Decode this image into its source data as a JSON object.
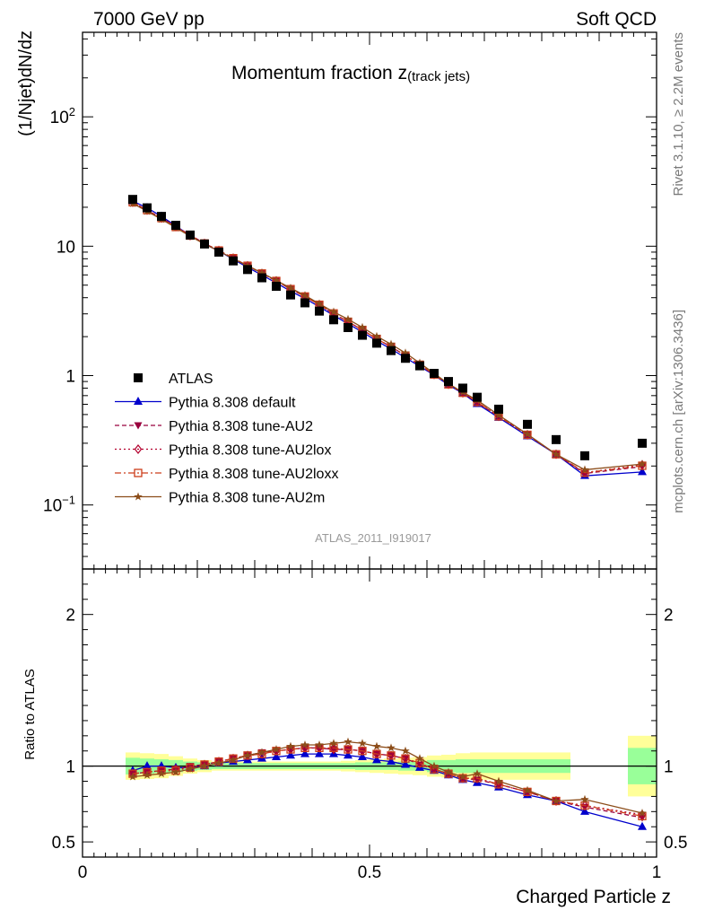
{
  "header": {
    "left": "7000 GeV pp",
    "right": "Soft QCD"
  },
  "side_labels": {
    "rivet": "Rivet 3.1.10, ≥ 2.2M events",
    "mcplots": "mcplots.cern.ch [arXiv:1306.3436]"
  },
  "main": {
    "title_main": "Momentum fraction ",
    "title_sym": "z",
    "title_sub": "(track jets)",
    "ylabel": "(1/Njet)dN/dz",
    "analysis_tag": "ATLAS_2011_I919017",
    "yticks": [
      {
        "label": "10",
        "exp": "−1",
        "pos": 0.1
      },
      {
        "label": "1",
        "exp": "",
        "pos": 1
      },
      {
        "label": "10",
        "exp": "",
        "pos": 10
      },
      {
        "label": "10",
        "exp": "2",
        "pos": 100
      }
    ]
  },
  "ratio": {
    "ylabel": "Ratio to ATLAS",
    "yticks": [
      {
        "label": "0.5",
        "pos": 0.5
      },
      {
        "label": "1",
        "pos": 1
      },
      {
        "label": "2",
        "pos": 2
      }
    ]
  },
  "xaxis": {
    "label": "Charged Particle z",
    "ticks": [
      {
        "label": "0",
        "pos": 0
      },
      {
        "label": "0.5",
        "pos": 0.5
      },
      {
        "label": "1",
        "pos": 1
      }
    ]
  },
  "legend": [
    {
      "name": "ATLAS",
      "color": "#000000",
      "marker": "square",
      "dash": ""
    },
    {
      "name": "Pythia 8.308 default",
      "color": "#0000cc",
      "marker": "triangle",
      "dash": ""
    },
    {
      "name": "Pythia 8.308 tune-AU2",
      "color": "#99003d",
      "marker": "tridown",
      "dash": "5,3"
    },
    {
      "name": "Pythia 8.308 tune-AU2lox",
      "color": "#b3002d",
      "marker": "diamond",
      "dash": "2,3"
    },
    {
      "name": "Pythia 8.308 tune-AU2loxx",
      "color": "#cc3d1a",
      "marker": "opensquare",
      "dash": "7,3,2,3"
    },
    {
      "name": "Pythia 8.308 tune-AU2m",
      "color": "#8c4d1a",
      "marker": "star",
      "dash": ""
    }
  ],
  "chart_data": {
    "type": "line",
    "x_range": [
      0,
      1
    ],
    "main_yscale": "log",
    "main_ylim": [
      0.032,
      450
    ],
    "ratio_ylim": [
      0.4,
      2.3
    ],
    "x": [
      0.0875,
      0.1125,
      0.1375,
      0.1625,
      0.1875,
      0.2125,
      0.2375,
      0.2625,
      0.2875,
      0.3125,
      0.3375,
      0.3625,
      0.3875,
      0.4125,
      0.4375,
      0.4625,
      0.4875,
      0.5125,
      0.5375,
      0.5625,
      0.5875,
      0.6125,
      0.6375,
      0.6625,
      0.6875,
      0.725,
      0.775,
      0.825,
      0.875,
      0.975
    ],
    "x_err": [
      0.0125,
      0.0125,
      0.0125,
      0.0125,
      0.0125,
      0.0125,
      0.0125,
      0.0125,
      0.0125,
      0.0125,
      0.0125,
      0.0125,
      0.0125,
      0.0125,
      0.0125,
      0.0125,
      0.0125,
      0.0125,
      0.0125,
      0.0125,
      0.0125,
      0.0125,
      0.0125,
      0.0125,
      0.0125,
      0.025,
      0.025,
      0.025,
      0.025,
      0.025
    ],
    "data": [
      23.0,
      19.8,
      17.0,
      14.5,
      12.2,
      10.4,
      9.0,
      7.7,
      6.6,
      5.7,
      4.9,
      4.2,
      3.65,
      3.15,
      2.7,
      2.35,
      2.05,
      1.78,
      1.56,
      1.36,
      1.19,
      1.04,
      0.9,
      0.8,
      0.68,
      0.55,
      0.42,
      0.32,
      0.24,
      0.3
    ],
    "band_inner": [
      0.055,
      0.05,
      0.045,
      0.04,
      0.03,
      0.025,
      0.02,
      0.02,
      0.02,
      0.02,
      0.02,
      0.02,
      0.02,
      0.02,
      0.02,
      0.02,
      0.025,
      0.025,
      0.025,
      0.03,
      0.03,
      0.04,
      0.04,
      0.045,
      0.045,
      0.045,
      0.045,
      0.045,
      0.045,
      0.12
    ],
    "band_outer": [
      0.09,
      0.085,
      0.08,
      0.065,
      0.05,
      0.04,
      0.03,
      0.03,
      0.03,
      0.03,
      0.03,
      0.03,
      0.03,
      0.03,
      0.03,
      0.035,
      0.04,
      0.045,
      0.05,
      0.055,
      0.06,
      0.07,
      0.075,
      0.085,
      0.09,
      0.09,
      0.09,
      0.09,
      0.09,
      0.2
    ],
    "band_gaps": [
      28
    ],
    "series": [
      {
        "name": "Pythia 8.308 default",
        "ratio": [
          0.97,
          1.0,
          1.0,
          0.99,
          0.99,
          1.0,
          1.02,
          1.03,
          1.04,
          1.05,
          1.06,
          1.07,
          1.08,
          1.08,
          1.08,
          1.07,
          1.06,
          1.04,
          1.03,
          1.01,
          0.99,
          0.97,
          0.94,
          0.91,
          0.89,
          0.86,
          0.81,
          0.77,
          0.7,
          0.6
        ]
      },
      {
        "name": "Pythia 8.308 tune-AU2",
        "ratio": [
          0.95,
          0.96,
          0.97,
          0.98,
          1.0,
          1.01,
          1.03,
          1.05,
          1.07,
          1.09,
          1.1,
          1.11,
          1.12,
          1.12,
          1.11,
          1.11,
          1.1,
          1.08,
          1.07,
          1.05,
          1.01,
          0.98,
          0.95,
          0.92,
          0.91,
          0.88,
          0.83,
          0.77,
          0.73,
          0.66
        ]
      },
      {
        "name": "Pythia 8.308 tune-AU2lox",
        "ratio": [
          0.95,
          0.96,
          0.97,
          0.98,
          0.99,
          1.01,
          1.03,
          1.05,
          1.07,
          1.08,
          1.1,
          1.11,
          1.12,
          1.12,
          1.11,
          1.11,
          1.1,
          1.08,
          1.07,
          1.05,
          1.02,
          0.98,
          0.95,
          0.92,
          0.92,
          0.88,
          0.83,
          0.77,
          0.74,
          0.68
        ]
      },
      {
        "name": "Pythia 8.308 tune-AU2loxx",
        "ratio": [
          0.95,
          0.96,
          0.97,
          0.97,
          0.99,
          1.01,
          1.03,
          1.05,
          1.07,
          1.08,
          1.1,
          1.11,
          1.12,
          1.12,
          1.12,
          1.11,
          1.1,
          1.08,
          1.07,
          1.05,
          1.02,
          0.98,
          0.95,
          0.92,
          0.92,
          0.88,
          0.83,
          0.77,
          0.74,
          0.67
        ]
      },
      {
        "name": "Pythia 8.308 tune-AU2m",
        "ratio": [
          0.93,
          0.94,
          0.95,
          0.96,
          0.98,
          1.0,
          1.02,
          1.04,
          1.07,
          1.09,
          1.11,
          1.13,
          1.14,
          1.14,
          1.15,
          1.16,
          1.15,
          1.13,
          1.12,
          1.1,
          1.05,
          1.0,
          0.96,
          0.93,
          0.95,
          0.9,
          0.84,
          0.77,
          0.78,
          0.69
        ]
      }
    ]
  }
}
